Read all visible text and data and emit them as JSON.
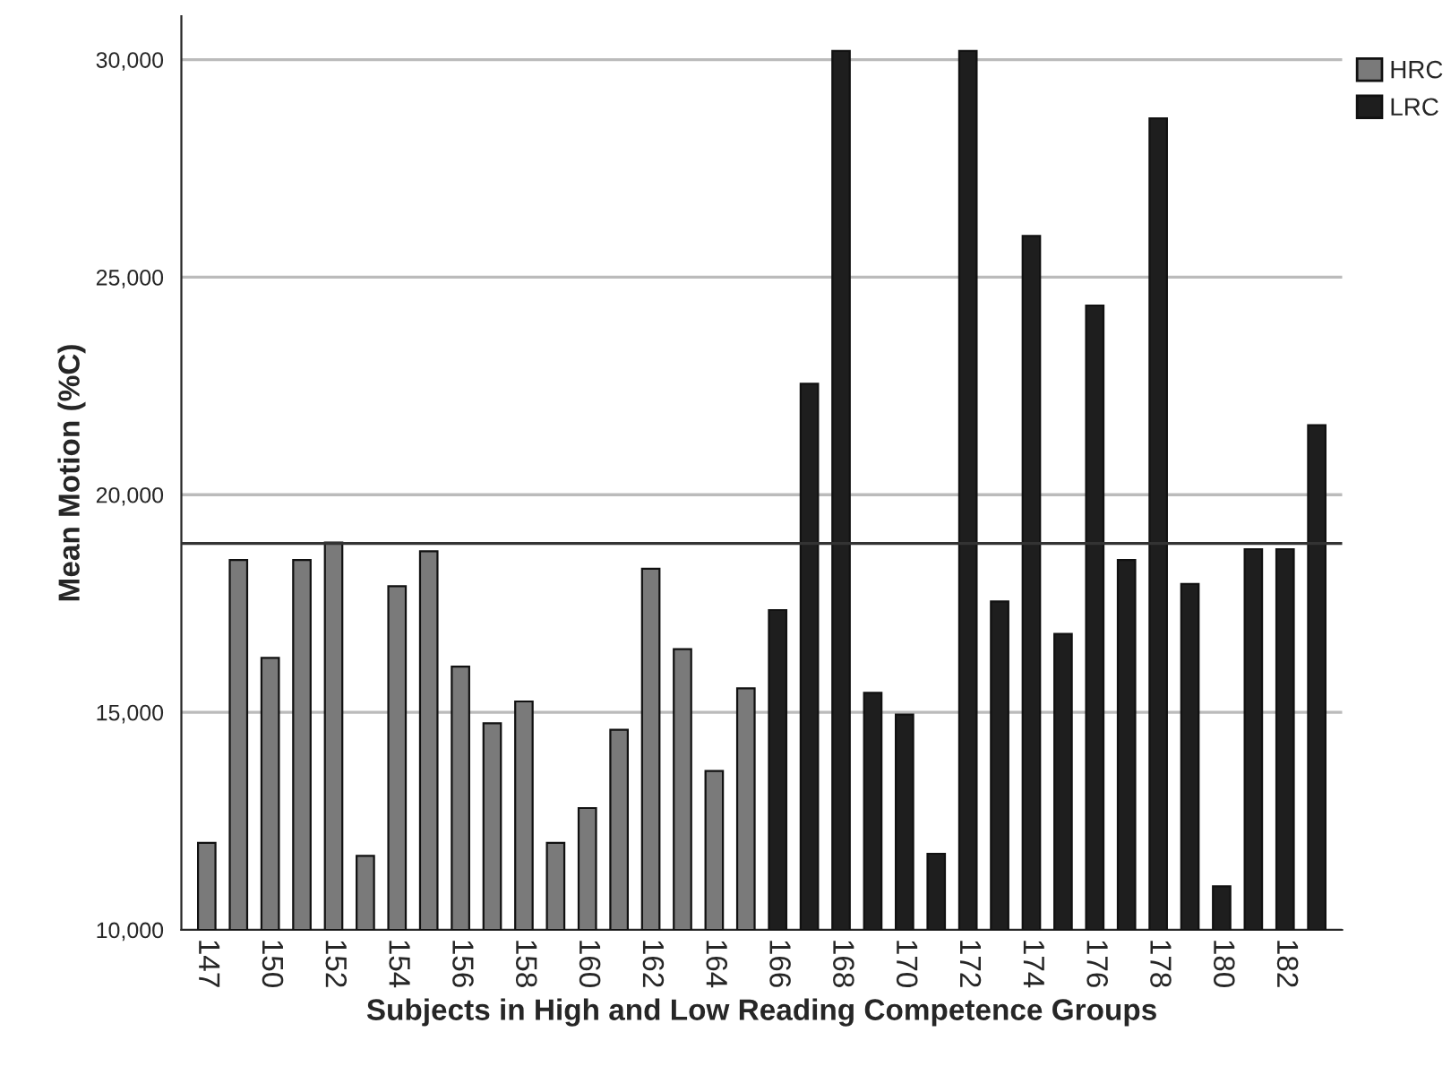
{
  "chart_data": {
    "type": "bar",
    "xlabel": "Subjects in High and Low Reading Competence Groups",
    "ylabel": "Mean Motion (%C)",
    "categories": [
      "147",
      null,
      "150",
      null,
      "152",
      null,
      "154",
      null,
      "156",
      null,
      "158",
      null,
      "160",
      null,
      "162",
      null,
      "164",
      null,
      "166",
      null,
      "168",
      null,
      "170",
      null,
      "172",
      null,
      "174",
      null,
      "176",
      null,
      "178",
      null,
      "180",
      null,
      "182",
      null
    ],
    "series": [
      {
        "name": "HRC",
        "color": "#7a7a7a",
        "values": [
          12000,
          18500,
          16250,
          18500,
          18900,
          11700,
          17900,
          18700,
          16050,
          14750,
          15250,
          12000,
          12800,
          14600,
          18300,
          16450,
          13650,
          15550,
          null,
          null,
          null,
          null,
          null,
          null,
          null,
          null,
          null,
          null,
          null,
          null,
          null,
          null,
          null,
          null,
          null,
          null
        ]
      },
      {
        "name": "LRC",
        "color": "#1e1e1e",
        "values": [
          null,
          null,
          null,
          null,
          null,
          null,
          null,
          null,
          null,
          null,
          null,
          null,
          null,
          null,
          null,
          null,
          null,
          null,
          17350,
          22550,
          30200,
          15450,
          14950,
          11750,
          30200,
          17550,
          25950,
          16800,
          24350,
          18500,
          28650,
          17950,
          11000,
          18750,
          18750,
          21600
        ]
      }
    ],
    "ylim": [
      10000,
      31000
    ],
    "yticks": [
      {
        "value": 10000,
        "label": "10,000"
      },
      {
        "value": 15000,
        "label": "15,000"
      },
      {
        "value": 20000,
        "label": "20,000"
      },
      {
        "value": 25000,
        "label": "25,000"
      },
      {
        "value": 30000,
        "label": "30,000"
      }
    ],
    "grid": "y",
    "legend": "top right",
    "ref_lines": [
      {
        "axis": "y",
        "value": 18880,
        "color": "#333333"
      }
    ]
  }
}
